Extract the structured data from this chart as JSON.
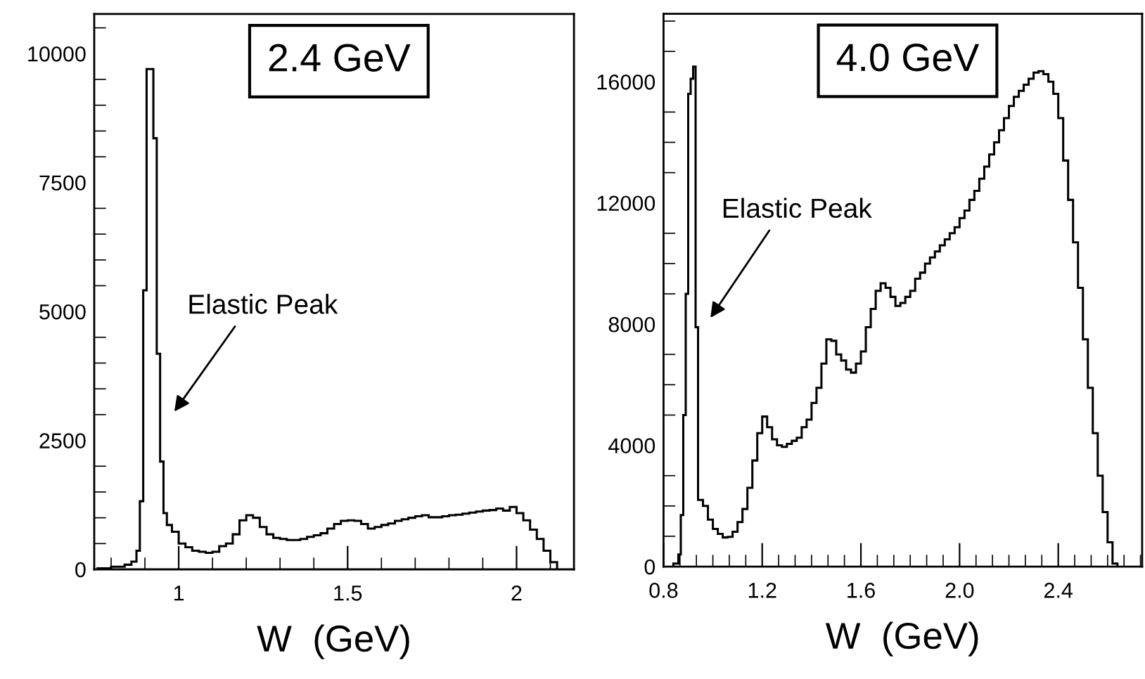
{
  "chart_data": [
    {
      "type": "histogram",
      "xlabel": "W  (GeV)",
      "color": "#000000",
      "bins": [
        0.76,
        0.8,
        0.84,
        0.86,
        0.875,
        0.885,
        0.895,
        0.905,
        0.915,
        0.925,
        0.935,
        0.945,
        0.955,
        0.965,
        0.98,
        1.0,
        1.02,
        1.04,
        1.06,
        1.08,
        1.1,
        1.12,
        1.14,
        1.16,
        1.18,
        1.2,
        1.22,
        1.24,
        1.26,
        1.28,
        1.3,
        1.32,
        1.34,
        1.36,
        1.38,
        1.4,
        1.42,
        1.44,
        1.46,
        1.48,
        1.5,
        1.52,
        1.54,
        1.56,
        1.58,
        1.6,
        1.62,
        1.64,
        1.66,
        1.68,
        1.7,
        1.72,
        1.74,
        1.76,
        1.78,
        1.8,
        1.82,
        1.84,
        1.86,
        1.88,
        1.9,
        1.92,
        1.94,
        1.96,
        1.98,
        2.0,
        2.02,
        2.04,
        2.06,
        2.08,
        2.1,
        2.12
      ],
      "values": [
        20,
        50,
        90,
        150,
        360,
        1320,
        5410,
        9700,
        9700,
        8360,
        4180,
        2090,
        1090,
        860,
        730,
        500,
        430,
        360,
        340,
        320,
        340,
        450,
        500,
        680,
        950,
        1050,
        1000,
        820,
        680,
        610,
        590,
        570,
        570,
        590,
        630,
        660,
        700,
        790,
        880,
        940,
        950,
        940,
        880,
        790,
        820,
        860,
        890,
        940,
        970,
        1000,
        1030,
        1050,
        1010,
        1010,
        1030,
        1050,
        1060,
        1080,
        1100,
        1120,
        1140,
        1150,
        1180,
        1140,
        1210,
        1090,
        950,
        770,
        590,
        360,
        140
      ],
      "xlim": [
        0.75,
        2.17
      ],
      "ylim": [
        0,
        10770
      ],
      "xticks": [
        1,
        1.5,
        2
      ],
      "yticks": [
        0,
        2500,
        5000,
        7500,
        10000
      ],
      "annotations": [
        "2.4 GeV",
        "Elastic Peak"
      ]
    },
    {
      "type": "histogram",
      "xlabel": "W  (GeV)",
      "color": "#000000",
      "bins": [
        0.84,
        0.86,
        0.87,
        0.88,
        0.89,
        0.9,
        0.91,
        0.92,
        0.93,
        0.94,
        0.96,
        0.98,
        1.0,
        1.02,
        1.04,
        1.06,
        1.08,
        1.1,
        1.12,
        1.14,
        1.16,
        1.18,
        1.2,
        1.22,
        1.24,
        1.26,
        1.28,
        1.3,
        1.32,
        1.34,
        1.36,
        1.38,
        1.4,
        1.42,
        1.44,
        1.46,
        1.48,
        1.5,
        1.52,
        1.54,
        1.56,
        1.58,
        1.6,
        1.62,
        1.64,
        1.66,
        1.68,
        1.7,
        1.72,
        1.74,
        1.76,
        1.78,
        1.8,
        1.82,
        1.84,
        1.86,
        1.88,
        1.9,
        1.92,
        1.94,
        1.96,
        1.98,
        2.0,
        2.02,
        2.04,
        2.06,
        2.08,
        2.1,
        2.12,
        2.14,
        2.16,
        2.18,
        2.2,
        2.22,
        2.24,
        2.26,
        2.28,
        2.3,
        2.32,
        2.34,
        2.36,
        2.38,
        2.4,
        2.42,
        2.44,
        2.46,
        2.48,
        2.5,
        2.52,
        2.54,
        2.56,
        2.58,
        2.6,
        2.62,
        2.64
      ],
      "values": [
        100,
        400,
        1700,
        5000,
        9000,
        15600,
        16100,
        16500,
        7900,
        2200,
        2000,
        1550,
        1240,
        1080,
        960,
        980,
        1150,
        1470,
        1900,
        2600,
        3500,
        4400,
        4950,
        4600,
        4200,
        4000,
        3950,
        4050,
        4150,
        4250,
        4600,
        4850,
        5400,
        5900,
        6700,
        7500,
        7450,
        7000,
        6800,
        6500,
        6400,
        6700,
        7100,
        7900,
        8500,
        9100,
        9350,
        9200,
        8900,
        8600,
        8700,
        8900,
        9100,
        9500,
        9700,
        10000,
        10200,
        10400,
        10600,
        10800,
        11000,
        11200,
        11500,
        11750,
        12100,
        12400,
        12800,
        13200,
        13600,
        14000,
        14400,
        14800,
        15200,
        15500,
        15700,
        15900,
        16100,
        16300,
        16350,
        16250,
        16000,
        15600,
        14800,
        13400,
        12100,
        10700,
        9200,
        7500,
        5900,
        4400,
        3000,
        1800,
        800,
        100
      ],
      "xlim": [
        0.8,
        2.74
      ],
      "ylim": [
        0,
        18240
      ],
      "xticks": [
        {
          "value": 0.8,
          "label": "0.8"
        },
        {
          "value": 1.2,
          "label": "1.2"
        },
        {
          "value": 1.6,
          "label": "1.6"
        },
        {
          "value": 2.0,
          "label": "2.0"
        },
        {
          "value": 2.4,
          "label": "2.4"
        }
      ],
      "yticks": [
        0,
        4000,
        8000,
        12000,
        16000
      ],
      "annotations": [
        "4.0 GeV",
        "Elastic Peak"
      ]
    }
  ]
}
